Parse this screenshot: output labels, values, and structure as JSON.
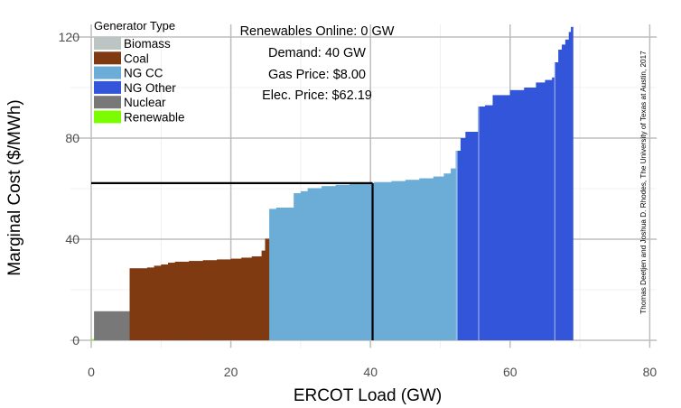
{
  "chart_data": {
    "type": "bar",
    "subtype": "supply-curve-step",
    "xlabel": "ERCOT Load (GW)",
    "ylabel": "Marginal Cost ($/MWh)",
    "xlim": [
      -3,
      81
    ],
    "ylim": [
      -3,
      125
    ],
    "x_ticks": [
      0,
      20,
      40,
      60,
      80
    ],
    "y_ticks": [
      0,
      40,
      80,
      120
    ],
    "x_tick_labels": [
      "0",
      "20",
      "40",
      "60",
      "80"
    ],
    "y_tick_labels": [
      "0",
      "40",
      "80",
      "120"
    ],
    "grid": true,
    "legend_title": "Generator Type",
    "legend_position": "top-left",
    "legend": [
      {
        "name": "Biomass",
        "color": "#bcc4c4"
      },
      {
        "name": "Coal",
        "color": "#7f3a11"
      },
      {
        "name": "NG CC",
        "color": "#6badd6"
      },
      {
        "name": "NG Other",
        "color": "#3355d9"
      },
      {
        "name": "Nuclear",
        "color": "#787878"
      },
      {
        "name": "Renewable",
        "color": "#7cfc00"
      }
    ],
    "annotations": {
      "renewables_online": "Renewables Online: 0 GW",
      "demand": "Demand: 40 GW",
      "gas_price": "Gas Price: $8.00",
      "elec_price": "Elec. Price: $62.19"
    },
    "demand_gw": 40.3,
    "clearing_price": 62.19,
    "credit": "Thomas Deetjen and Joshua D. Rhodes, The University of Texas at Austin, 2017",
    "segments": [
      {
        "type": "Renewable",
        "x0": 0.0,
        "x1": 0.4,
        "y": 0.5
      },
      {
        "type": "Nuclear",
        "x0": 0.4,
        "x1": 5.5,
        "y": 11.5
      },
      {
        "type": "Coal",
        "x0": 5.5,
        "x1": 8.0,
        "y": 28.5
      },
      {
        "type": "Coal",
        "x0": 8.0,
        "x1": 9.0,
        "y": 28.8
      },
      {
        "type": "Coal",
        "x0": 9.0,
        "x1": 10.0,
        "y": 29.5
      },
      {
        "type": "Coal",
        "x0": 10.0,
        "x1": 11.0,
        "y": 30.0
      },
      {
        "type": "Coal",
        "x0": 11.0,
        "x1": 12.0,
        "y": 30.7
      },
      {
        "type": "Coal",
        "x0": 12.0,
        "x1": 14.0,
        "y": 31.1
      },
      {
        "type": "Coal",
        "x0": 14.0,
        "x1": 16.0,
        "y": 31.4
      },
      {
        "type": "Coal",
        "x0": 16.0,
        "x1": 18.0,
        "y": 31.7
      },
      {
        "type": "Coal",
        "x0": 18.0,
        "x1": 20.0,
        "y": 32.0
      },
      {
        "type": "Coal",
        "x0": 20.0,
        "x1": 21.5,
        "y": 32.3
      },
      {
        "type": "Coal",
        "x0": 21.5,
        "x1": 23.0,
        "y": 32.7
      },
      {
        "type": "Coal",
        "x0": 23.0,
        "x1": 24.4,
        "y": 33.2
      },
      {
        "type": "Coal",
        "x0": 24.4,
        "x1": 24.9,
        "y": 35.5
      },
      {
        "type": "Coal",
        "x0": 24.9,
        "x1": 25.5,
        "y": 40.2
      },
      {
        "type": "NG CC",
        "x0": 25.5,
        "x1": 26.5,
        "y": 52.0
      },
      {
        "type": "NG CC",
        "x0": 26.5,
        "x1": 29.0,
        "y": 52.5
      },
      {
        "type": "NG CC",
        "x0": 29.0,
        "x1": 30.0,
        "y": 58.2
      },
      {
        "type": "NG CC",
        "x0": 30.0,
        "x1": 31.0,
        "y": 59.0
      },
      {
        "type": "NG CC",
        "x0": 31.0,
        "x1": 33.0,
        "y": 60.2
      },
      {
        "type": "NG CC",
        "x0": 33.0,
        "x1": 35.0,
        "y": 61.0
      },
      {
        "type": "NG CC",
        "x0": 35.0,
        "x1": 37.0,
        "y": 61.5
      },
      {
        "type": "NG CC",
        "x0": 37.0,
        "x1": 40.5,
        "y": 62.19
      },
      {
        "type": "NG CC",
        "x0": 40.5,
        "x1": 43.0,
        "y": 62.6
      },
      {
        "type": "NG CC",
        "x0": 43.0,
        "x1": 45.0,
        "y": 63.0
      },
      {
        "type": "NG CC",
        "x0": 45.0,
        "x1": 47.0,
        "y": 63.5
      },
      {
        "type": "NG CC",
        "x0": 47.0,
        "x1": 49.0,
        "y": 64.1
      },
      {
        "type": "NG CC",
        "x0": 49.0,
        "x1": 50.5,
        "y": 64.8
      },
      {
        "type": "NG CC",
        "x0": 50.5,
        "x1": 51.5,
        "y": 66.0
      },
      {
        "type": "NG CC",
        "x0": 51.5,
        "x1": 52.2,
        "y": 68.0
      },
      {
        "type": "NG CC",
        "x0": 52.2,
        "x1": 52.5,
        "y": 75.0
      },
      {
        "type": "NG Other",
        "x0": 52.5,
        "x1": 52.9,
        "y": 75.0
      },
      {
        "type": "NG Other",
        "x0": 52.9,
        "x1": 53.6,
        "y": 80.0
      },
      {
        "type": "NG Other",
        "x0": 53.6,
        "x1": 55.4,
        "y": 82.5
      },
      {
        "type": "NG Other",
        "x0": 55.4,
        "x1": 56.4,
        "y": 92.5
      },
      {
        "type": "NG Other",
        "x0": 56.4,
        "x1": 57.5,
        "y": 93.0
      },
      {
        "type": "NG Other",
        "x0": 57.5,
        "x1": 60.0,
        "y": 97.0
      },
      {
        "type": "NG Other",
        "x0": 60.0,
        "x1": 62.0,
        "y": 99.0
      },
      {
        "type": "NG Other",
        "x0": 62.0,
        "x1": 63.7,
        "y": 100.0
      },
      {
        "type": "NG Other",
        "x0": 63.7,
        "x1": 65.0,
        "y": 102.0
      },
      {
        "type": "NG Other",
        "x0": 65.0,
        "x1": 66.0,
        "y": 103.0
      },
      {
        "type": "NG Other",
        "x0": 66.0,
        "x1": 66.4,
        "y": 104.0
      },
      {
        "type": "NG Other",
        "x0": 66.4,
        "x1": 66.9,
        "y": 110.0
      },
      {
        "type": "NG Other",
        "x0": 66.9,
        "x1": 67.4,
        "y": 115.0
      },
      {
        "type": "NG Other",
        "x0": 67.4,
        "x1": 67.9,
        "y": 117.0
      },
      {
        "type": "NG Other",
        "x0": 67.9,
        "x1": 68.4,
        "y": 119.0
      },
      {
        "type": "NG Other",
        "x0": 68.4,
        "x1": 68.7,
        "y": 122.0
      },
      {
        "type": "NG Other",
        "x0": 68.7,
        "x1": 69.0,
        "y": 124.0
      }
    ],
    "divider_x": [
      52.3,
      55.5,
      66.4
    ]
  }
}
